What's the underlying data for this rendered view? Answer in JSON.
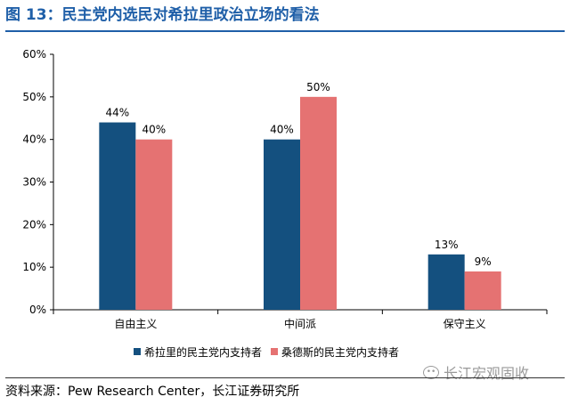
{
  "header": {
    "title": "图 13：民主党内选民对希拉里政治立场的看法"
  },
  "colors": {
    "title_blue": "#1f5fa8",
    "series_clinton": "#14507f",
    "series_sanders": "#e57272"
  },
  "chart_data": {
    "type": "bar",
    "categories": [
      "自由主义",
      "中间派",
      "保守主义"
    ],
    "series": [
      {
        "name": "希拉里的民主党内支持者",
        "values": [
          44,
          40,
          13
        ],
        "labels": [
          "44%",
          "40%",
          "13%"
        ],
        "color": "#14507f"
      },
      {
        "name": "桑德斯的民主党内支持者",
        "values": [
          40,
          50,
          9
        ],
        "labels": [
          "40%",
          "50%",
          "9%"
        ],
        "color": "#e57272"
      }
    ],
    "ylim": [
      0,
      60
    ],
    "yticks": [
      "0%",
      "10%",
      "20%",
      "30%",
      "40%",
      "50%",
      "60%"
    ],
    "xlabel": "",
    "ylabel": "",
    "grid": false,
    "legend_position": "bottom"
  },
  "footer": {
    "source": "资料来源：Pew Research Center，长江证券研究所",
    "watermark": "长江宏观固收",
    "watermark_icon": "wechat-icon"
  }
}
